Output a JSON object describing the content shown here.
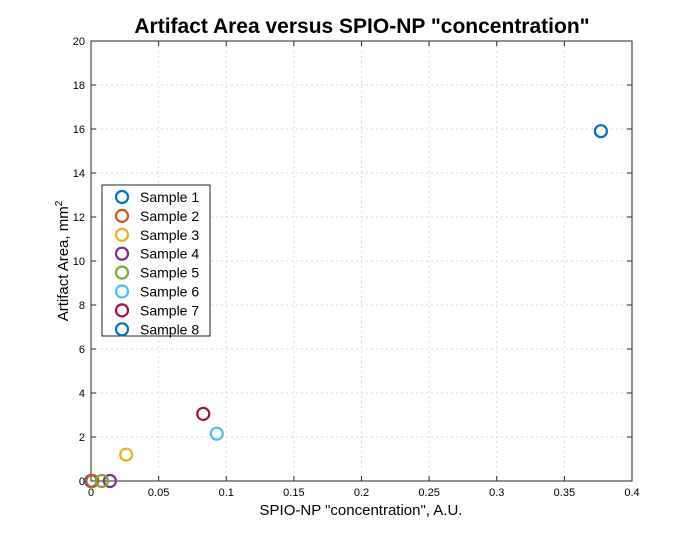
{
  "chart_data": {
    "type": "scatter",
    "title": "Artifact Area versus SPIO-NP \"concentration\"",
    "xlabel": "SPIO-NP \"concentration\", A.U.",
    "ylabel": "Artifact Area, mm",
    "ylabel_superscript": "2",
    "xlim": [
      0,
      0.4
    ],
    "ylim": [
      0,
      20
    ],
    "x_ticks": [
      0,
      0.05,
      0.1,
      0.15,
      0.2,
      0.25,
      0.3,
      0.35,
      0.4
    ],
    "x_tick_labels": [
      "0",
      "0.05",
      "0.1",
      "0.15",
      "0.2",
      "0.25",
      "0.3",
      "0.35",
      "0.4"
    ],
    "y_ticks": [
      0,
      2,
      4,
      6,
      8,
      10,
      12,
      14,
      16,
      18,
      20
    ],
    "y_tick_labels": [
      "0",
      "2",
      "4",
      "6",
      "8",
      "10",
      "12",
      "14",
      "16",
      "18",
      "20"
    ],
    "grid": true,
    "legend_position": "left",
    "series": [
      {
        "name": "Sample 1",
        "color": "#0072BD",
        "x": [
          0.0
        ],
        "y": [
          0.0
        ]
      },
      {
        "name": "Sample 2",
        "color": "#D95319",
        "x": [
          0.001
        ],
        "y": [
          0.0
        ]
      },
      {
        "name": "Sample 3",
        "color": "#EDB120",
        "x": [
          0.026
        ],
        "y": [
          1.2
        ]
      },
      {
        "name": "Sample 4",
        "color": "#7E2F8E",
        "x": [
          0.014
        ],
        "y": [
          0.0
        ]
      },
      {
        "name": "Sample 5",
        "color": "#77AC30",
        "x": [
          0.008
        ],
        "y": [
          0.0
        ]
      },
      {
        "name": "Sample 6",
        "color": "#4DBEEE",
        "x": [
          0.093
        ],
        "y": [
          2.15
        ]
      },
      {
        "name": "Sample 7",
        "color": "#A2142F",
        "x": [
          0.083
        ],
        "y": [
          3.05
        ]
      },
      {
        "name": "Sample 8",
        "color": "#0072BD",
        "x": [
          0.377
        ],
        "y": [
          15.9
        ]
      }
    ]
  }
}
